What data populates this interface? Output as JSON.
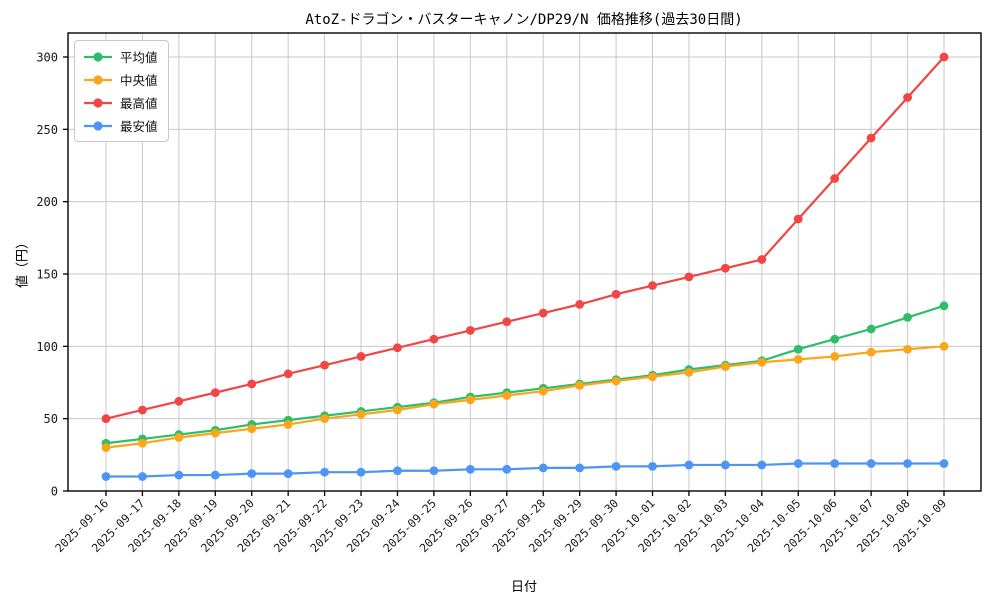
{
  "chart": {
    "title": "AtoZ-ドラゴン・バスターキャノン/DP29/N 価格推移(過去30日間)",
    "xlabel": "日付",
    "ylabel": "値（円）"
  },
  "chart_data": {
    "type": "line",
    "title": "AtoZ-ドラゴン・バスターキャノン/DP29/N 価格推移(過去30日間)",
    "xlabel": "日付",
    "ylabel": "値（円）",
    "grid": true,
    "legend_position": "upper left",
    "ylim": [
      0,
      316
    ],
    "yticks": [
      0,
      50,
      100,
      150,
      200,
      250,
      300
    ],
    "x": [
      "2025-09-16",
      "2025-09-17",
      "2025-09-18",
      "2025-09-19",
      "2025-09-20",
      "2025-09-21",
      "2025-09-22",
      "2025-09-23",
      "2025-09-24",
      "2025-09-25",
      "2025-09-26",
      "2025-09-27",
      "2025-09-28",
      "2025-09-29",
      "2025-09-30",
      "2025-10-01",
      "2025-10-02",
      "2025-10-03",
      "2025-10-04",
      "2025-10-05",
      "2025-10-06",
      "2025-10-07",
      "2025-10-08",
      "2025-10-09"
    ],
    "series": [
      {
        "key": "mean",
        "name": "平均値",
        "color": "#2ebe6a",
        "values": [
          33,
          36,
          39,
          42,
          46,
          49,
          52,
          55,
          58,
          61,
          65,
          68,
          71,
          74,
          77,
          80,
          84,
          87,
          90,
          98,
          105,
          112,
          120,
          128
        ]
      },
      {
        "key": "median",
        "name": "中央値",
        "color": "#faa51a",
        "values": [
          30,
          33,
          37,
          40,
          43,
          46,
          50,
          53,
          56,
          60,
          63,
          66,
          69,
          73,
          76,
          79,
          82,
          86,
          89,
          91,
          93,
          96,
          98,
          100
        ]
      },
      {
        "key": "max",
        "name": "最高値",
        "color": "#f04646",
        "values": [
          50,
          56,
          62,
          68,
          74,
          81,
          87,
          93,
          99,
          105,
          111,
          117,
          123,
          129,
          136,
          142,
          148,
          154,
          160,
          188,
          216,
          244,
          272,
          300
        ]
      },
      {
        "key": "min",
        "name": "最安値",
        "color": "#4d94f5",
        "values": [
          10,
          10,
          11,
          11,
          12,
          12,
          13,
          13,
          14,
          14,
          15,
          15,
          16,
          16,
          17,
          17,
          18,
          18,
          18,
          19,
          19,
          19,
          19,
          19
        ]
      }
    ],
    "colors": {
      "grid": "#c8c8c8",
      "spine": "#000000",
      "tick_label": "#1a1a1a"
    }
  }
}
